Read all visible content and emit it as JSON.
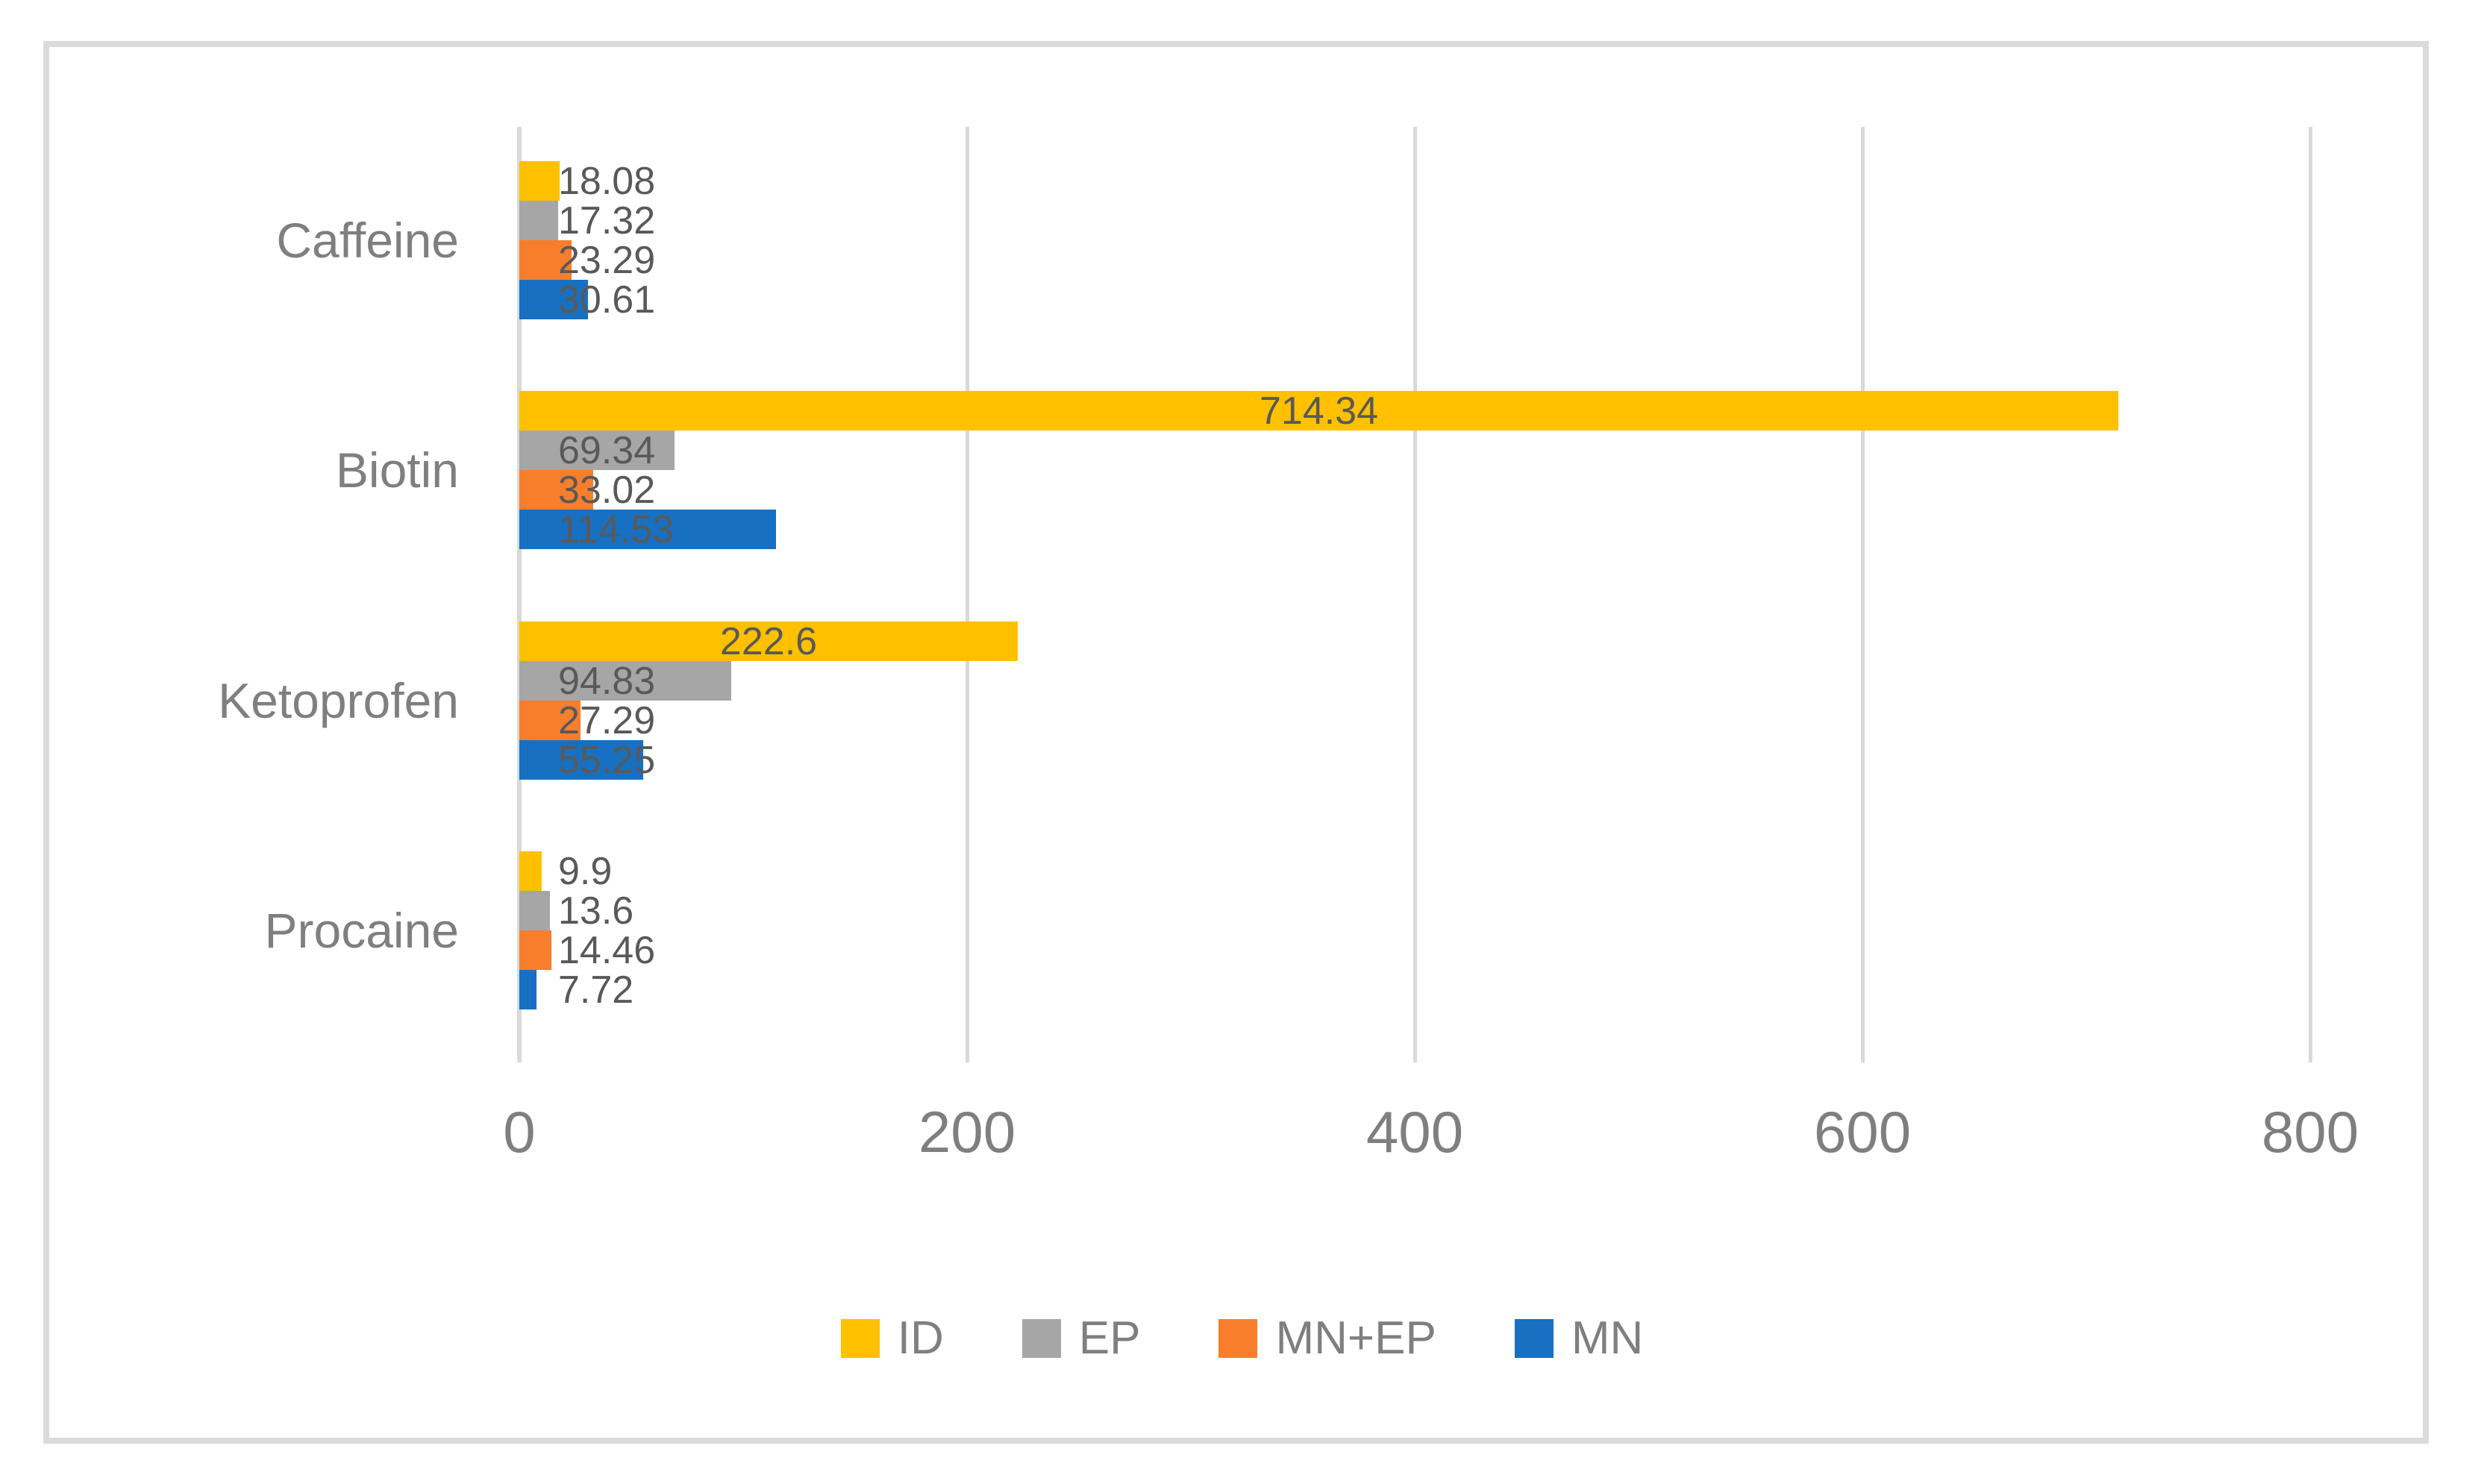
{
  "chart_data": {
    "type": "bar",
    "orientation": "horizontal",
    "title": "",
    "xlabel": "",
    "ylabel": "",
    "xlim": [
      0,
      800
    ],
    "xticks": [
      "0",
      "200",
      "400",
      "600",
      "800"
    ],
    "grid": true,
    "legend_position": "bottom",
    "categories": [
      "Caffeine",
      "Biotin",
      "Ketoprofen",
      "Procaine"
    ],
    "series": [
      {
        "name": "ID",
        "color": "#FFC000",
        "values": [
          18.08,
          714.34,
          222.6,
          9.9
        ],
        "labels": [
          "18.08",
          "714.34",
          "222.6",
          "9.9"
        ]
      },
      {
        "name": "EP",
        "color": "#A6A6A6",
        "values": [
          17.32,
          69.34,
          94.83,
          13.6
        ],
        "labels": [
          "17.32",
          "69.34",
          "94.83",
          "13.6"
        ]
      },
      {
        "name": "MN+EP",
        "color": "#F97E2B",
        "values": [
          23.29,
          33.02,
          27.29,
          14.46
        ],
        "labels": [
          "23.29",
          "33.02",
          "27.29",
          "14.46"
        ]
      },
      {
        "name": "MN",
        "color": "#1770C2",
        "values": [
          30.61,
          114.53,
          55.25,
          7.72
        ],
        "labels": [
          "30.61",
          "114.53",
          "55.25",
          "7.72"
        ]
      }
    ]
  },
  "colors": {
    "figure_border": "#dbdbdb",
    "gridline": "#d9d9d9",
    "category_text": "#7f7f7f",
    "tick_text": "#7f7f7f",
    "data_label_text": "#595959",
    "background": "#ffffff"
  },
  "legend": {
    "items": [
      {
        "label": "ID",
        "color": "#FFC000"
      },
      {
        "label": "EP",
        "color": "#A6A6A6"
      },
      {
        "label": "MN+EP",
        "color": "#F97E2B"
      },
      {
        "label": "MN",
        "color": "#1770C2"
      }
    ]
  }
}
